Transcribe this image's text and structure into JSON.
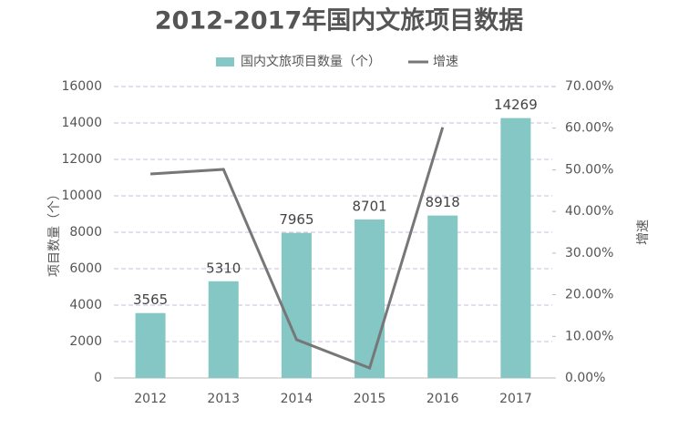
{
  "chart_data": {
    "type": "bar",
    "title": "2012-2017年国内文旅项目数据",
    "y_label": "项目数量（个）",
    "y2_label": "增速",
    "categories": [
      "2012",
      "2013",
      "2014",
      "2015",
      "2016",
      "2017"
    ],
    "series": [
      {
        "name": "国内文旅项目数量（个）",
        "type": "bar",
        "color": "#84c7c4",
        "values": [
          3565,
          5310,
          7965,
          8701,
          8918,
          14269
        ]
      },
      {
        "name": "增速",
        "type": "line",
        "axis": "y2",
        "color": "#777777",
        "values": [
          49.0,
          50.1,
          9.2,
          2.4,
          60.2,
          null
        ]
      }
    ],
    "ylim": [
      0,
      16000
    ],
    "yticks": [
      0,
      2000,
      4000,
      6000,
      8000,
      10000,
      12000,
      14000,
      16000
    ],
    "y2lim": [
      0,
      70
    ],
    "y2ticks": [
      {
        "value": 0,
        "label": "0.00%"
      },
      {
        "value": 10,
        "label": "10.00%"
      },
      {
        "value": 20,
        "label": "20.00%"
      },
      {
        "value": 30,
        "label": "30.00%"
      },
      {
        "value": 40,
        "label": "40.00%"
      },
      {
        "value": 50,
        "label": "50.00%"
      },
      {
        "value": 60,
        "label": "60.00%"
      },
      {
        "value": 70,
        "label": "70.00%"
      }
    ],
    "grid": true,
    "legend": "top"
  }
}
